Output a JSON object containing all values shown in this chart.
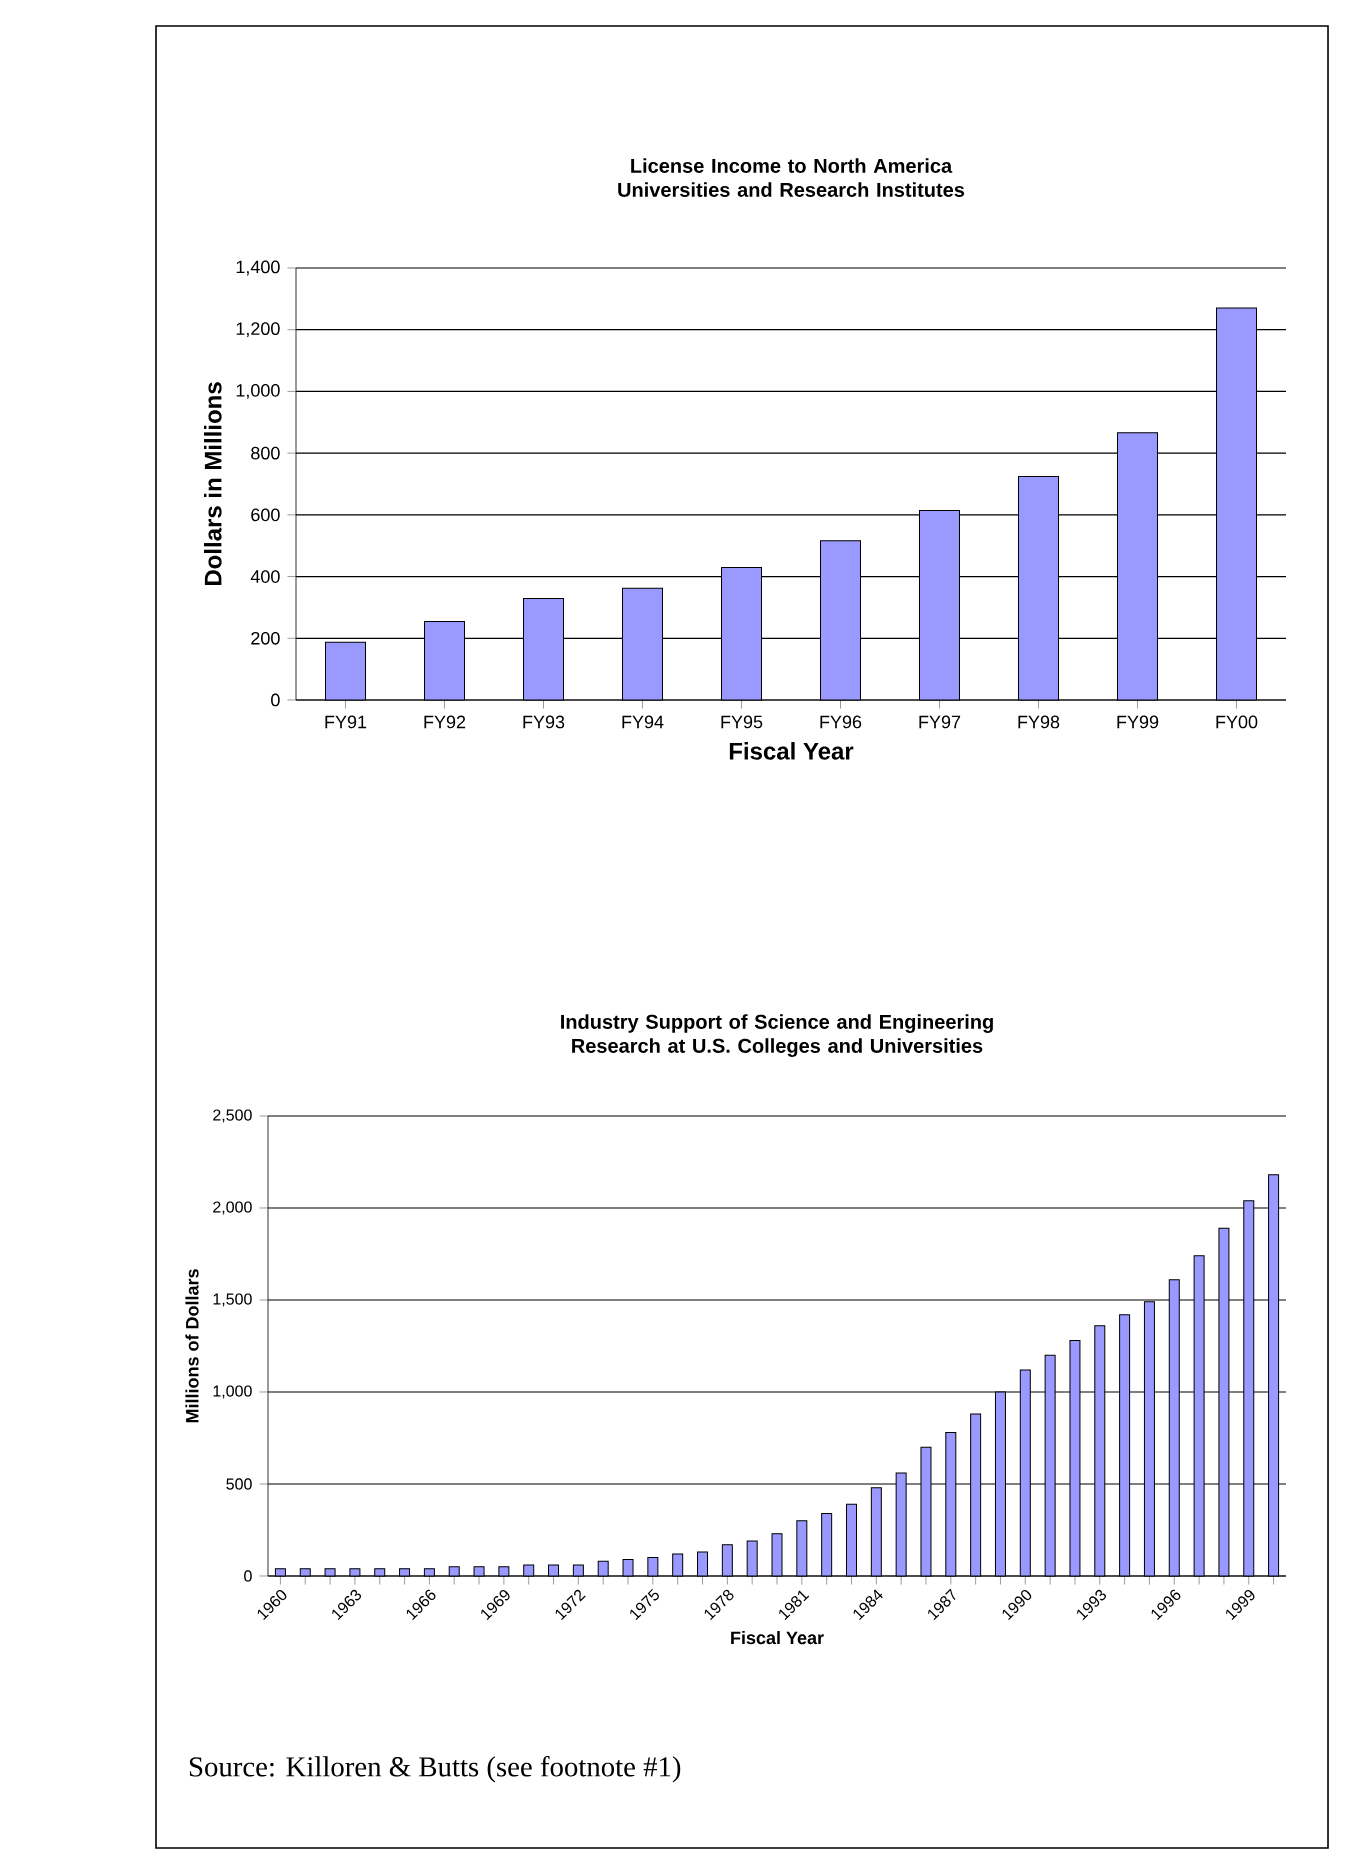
{
  "chart_data": [
    {
      "type": "bar",
      "title": "License Income to North America Universities and Research Institutes",
      "xlabel": "Fiscal Year",
      "ylabel": "Dollars in Millions",
      "categories": [
        "FY91",
        "FY92",
        "FY93",
        "FY94",
        "FY95",
        "FY96",
        "FY97",
        "FY98",
        "FY99",
        "FY00"
      ],
      "values": [
        187,
        254,
        329,
        362,
        429,
        516,
        614,
        724,
        866,
        1270
      ],
      "color": "#9999ff",
      "ylim": [
        0,
        1400
      ],
      "yticks": [
        0,
        200,
        400,
        600,
        800,
        {
          "value": 1000,
          "label": "1,000"
        },
        {
          "value": 1200,
          "label": "1,200"
        },
        {
          "value": 1400,
          "label": "1,400"
        }
      ],
      "grid": "y"
    },
    {
      "type": "bar",
      "title": "Industry Support of Science and Engineering Research at U.S. Colleges and Universities",
      "xlabel": "Fiscal Year",
      "ylabel": "Millions of Dollars",
      "categories": [
        "1960",
        null,
        null,
        "1963",
        null,
        null,
        "1966",
        null,
        null,
        "1969",
        null,
        null,
        "1972",
        null,
        null,
        "1975",
        null,
        null,
        "1978",
        null,
        null,
        "1981",
        null,
        null,
        "1984",
        null,
        null,
        "1987",
        null,
        null,
        "1990",
        null,
        null,
        "1993",
        null,
        null,
        "1996",
        null,
        null,
        "1999",
        null
      ],
      "values": [
        40,
        40,
        40,
        40,
        40,
        40,
        40,
        50,
        50,
        50,
        60,
        60,
        60,
        80,
        90,
        100,
        120,
        130,
        170,
        190,
        230,
        300,
        340,
        390,
        480,
        560,
        700,
        780,
        880,
        1000,
        1120,
        1200,
        1280,
        1360,
        1420,
        1490,
        1610,
        1740,
        1890,
        2040,
        2180
      ],
      "color": "#9999ff",
      "ylim": [
        0,
        2500
      ],
      "yticks": [
        0,
        500,
        {
          "value": 1000,
          "label": "1,000"
        },
        {
          "value": 1500,
          "label": "1,500"
        },
        {
          "value": 2000,
          "label": "2,000"
        },
        {
          "value": 2500,
          "label": "2,500"
        }
      ],
      "grid": "y",
      "annotations": [
        "Source: Killoren & Butts (see footnote #1)"
      ]
    }
  ]
}
